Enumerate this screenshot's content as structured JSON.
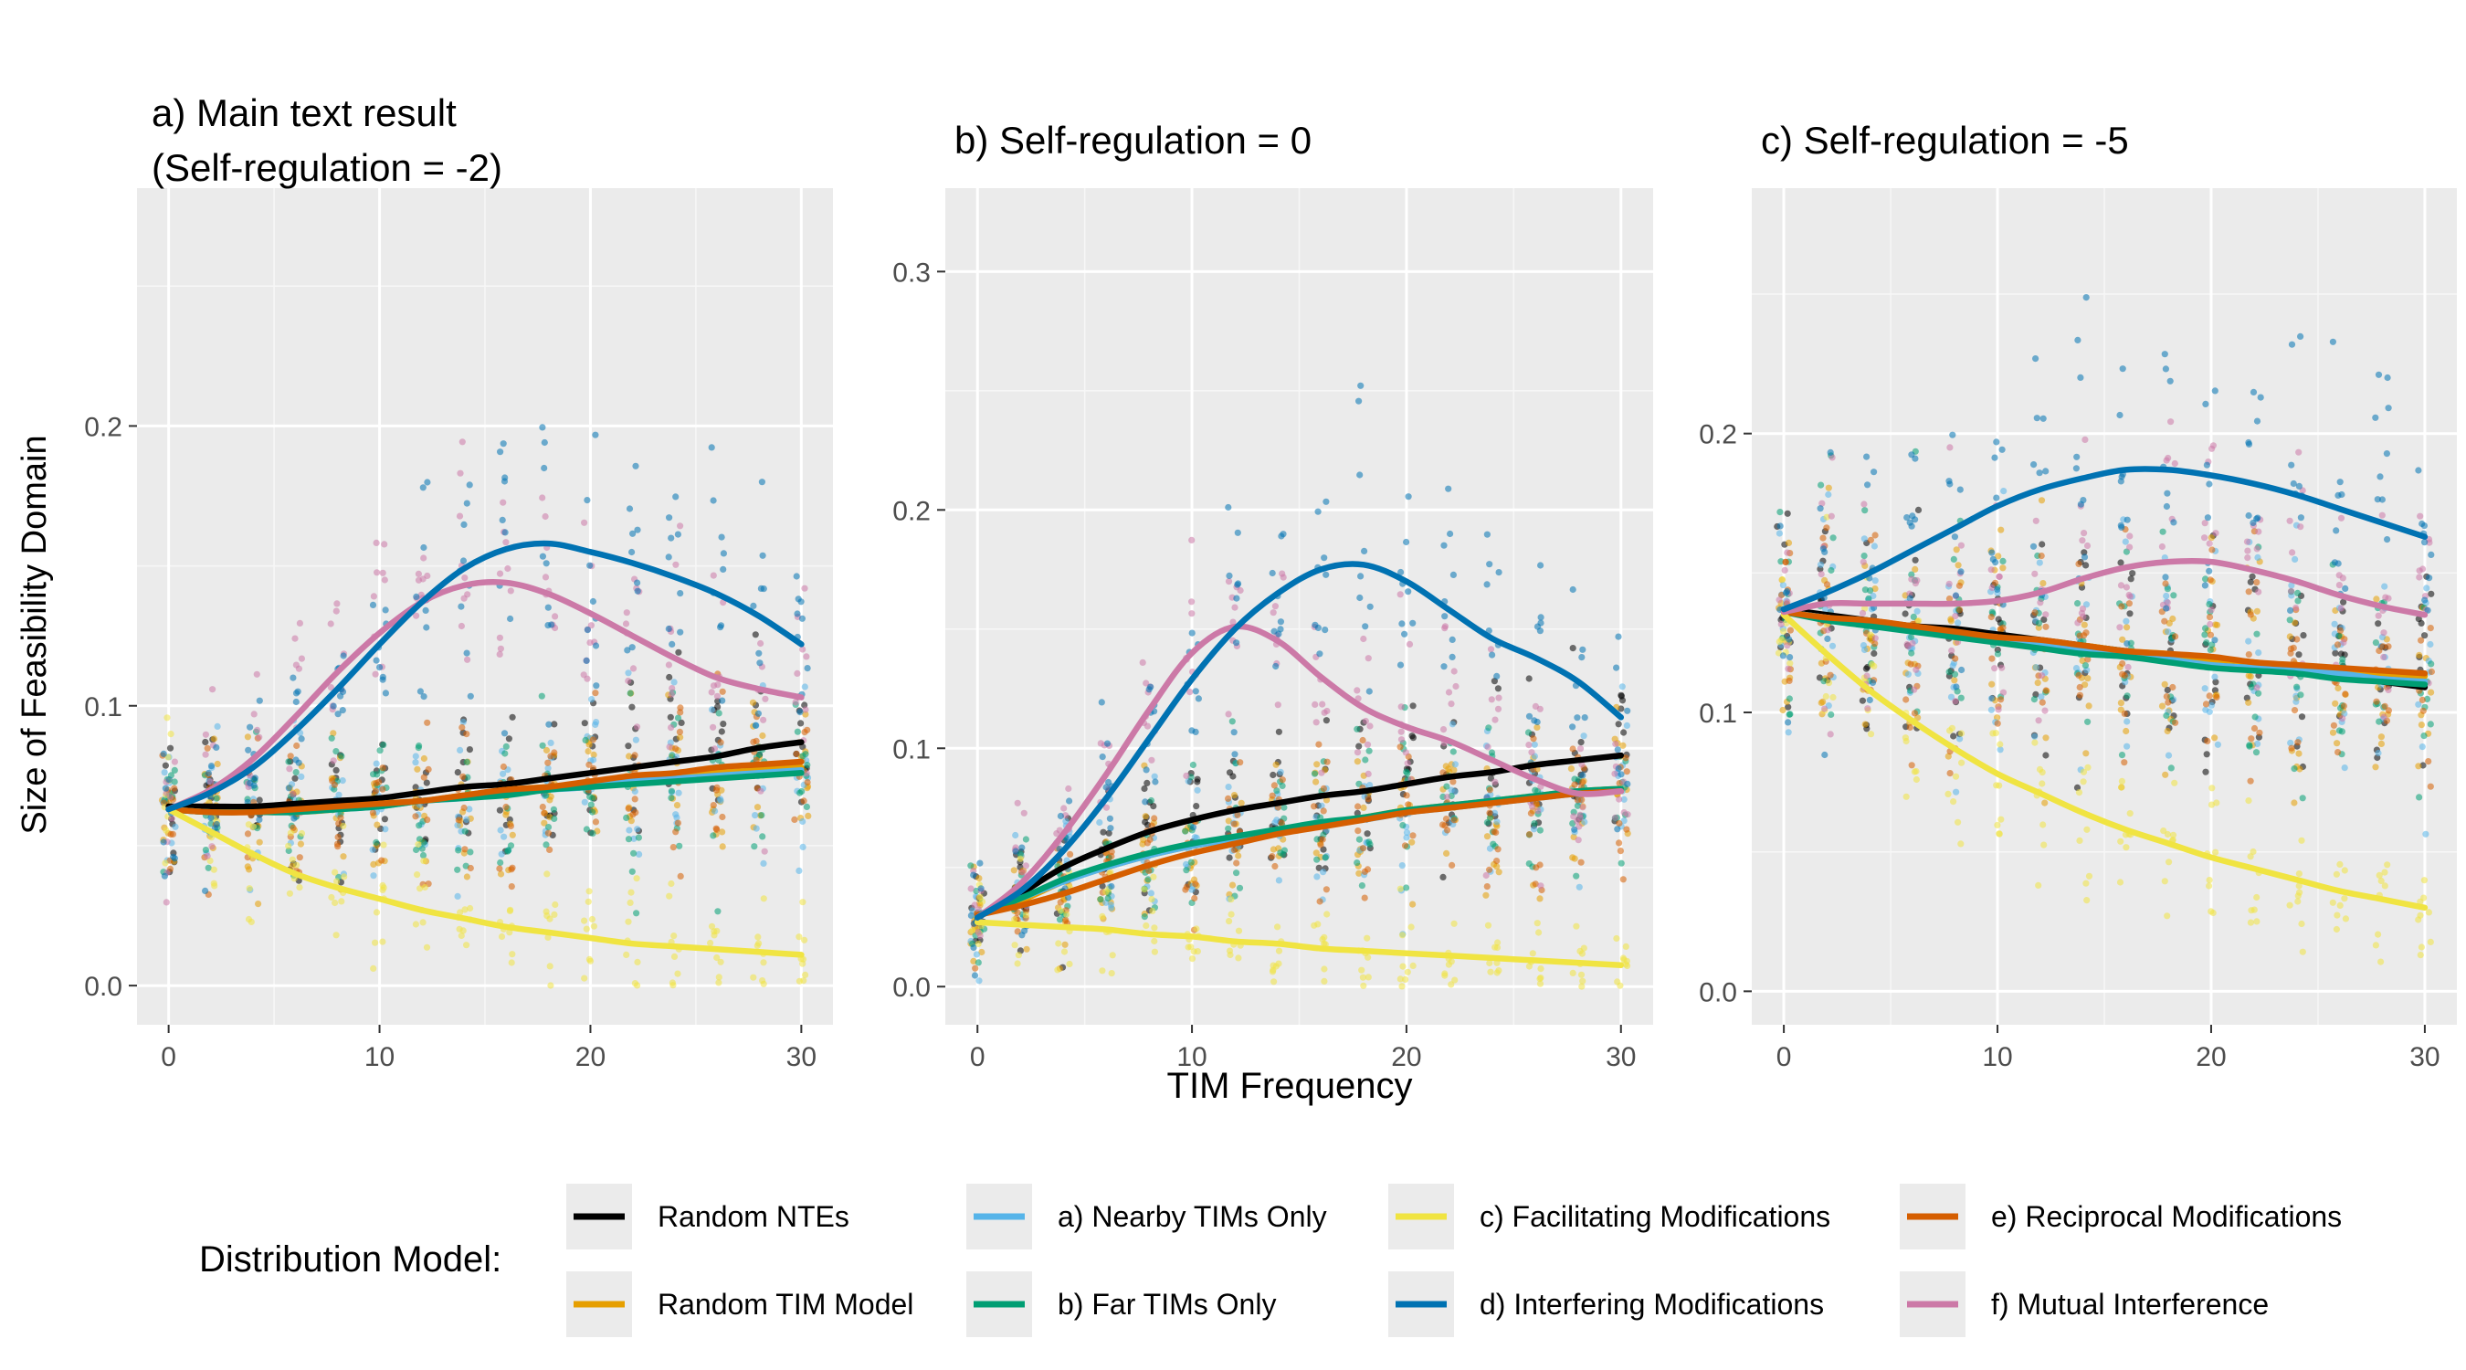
{
  "figure": {
    "ylabel": "Size of Feasibility Domain",
    "xlabel": "TIM Frequency",
    "legend_title": "Distribution Model:",
    "legend": [
      {
        "label": "Random NTEs",
        "color": "#000000"
      },
      {
        "label": "Random TIM Model",
        "color": "#E69F00"
      },
      {
        "label": "a) Nearby TIMs Only",
        "color": "#56B4E9"
      },
      {
        "label": "b) Far TIMs Only",
        "color": "#009E73"
      },
      {
        "label": "c) Facilitating Modifications",
        "color": "#F0E442"
      },
      {
        "label": "d) Interfering Modifications",
        "color": "#0072B2"
      },
      {
        "label": "e) Reciprocal Modifications",
        "color": "#D55E00"
      },
      {
        "label": "f) Mutual Interference",
        "color": "#CC79A7"
      }
    ]
  },
  "chart_data": [
    {
      "type": "scatter",
      "title": "a) Main text result",
      "subtitle": "(Self-regulation = -2)",
      "xlim": [
        -1.5,
        31.5
      ],
      "ylim": [
        -0.014,
        0.285
      ],
      "x_ticks": [
        0,
        10,
        20,
        30
      ],
      "y_ticks": [
        0.0,
        0.1,
        0.2
      ],
      "y_tick_labels": [
        "0.0",
        "0.1",
        "0.2"
      ],
      "x": [
        0,
        2,
        4,
        6,
        8,
        10,
        12,
        14,
        16,
        18,
        20,
        22,
        24,
        26,
        28,
        30
      ],
      "series": [
        {
          "name": "Random NTEs",
          "color": "#000000",
          "values": [
            0.064,
            0.064,
            0.064,
            0.065,
            0.066,
            0.067,
            0.069,
            0.071,
            0.072,
            0.074,
            0.076,
            0.078,
            0.08,
            0.082,
            0.085,
            0.087
          ]
        },
        {
          "name": "Random TIM Model",
          "color": "#E69F00",
          "values": [
            0.063,
            0.062,
            0.062,
            0.062,
            0.063,
            0.065,
            0.066,
            0.068,
            0.07,
            0.071,
            0.072,
            0.074,
            0.075,
            0.076,
            0.077,
            0.078
          ]
        },
        {
          "name": "a) Nearby TIMs Only",
          "color": "#56B4E9",
          "values": [
            0.063,
            0.062,
            0.062,
            0.062,
            0.063,
            0.064,
            0.066,
            0.067,
            0.069,
            0.07,
            0.071,
            0.073,
            0.074,
            0.075,
            0.076,
            0.077
          ]
        },
        {
          "name": "b) Far TIMs Only",
          "color": "#009E73",
          "values": [
            0.063,
            0.062,
            0.062,
            0.062,
            0.063,
            0.064,
            0.066,
            0.067,
            0.068,
            0.07,
            0.071,
            0.072,
            0.073,
            0.074,
            0.075,
            0.076
          ]
        },
        {
          "name": "c) Facilitating Modifications",
          "color": "#F0E442",
          "values": [
            0.063,
            0.055,
            0.047,
            0.04,
            0.035,
            0.031,
            0.027,
            0.024,
            0.021,
            0.019,
            0.017,
            0.015,
            0.014,
            0.013,
            0.012,
            0.011
          ]
        },
        {
          "name": "d) Interfering Modifications",
          "color": "#0072B2",
          "values": [
            0.063,
            0.069,
            0.078,
            0.091,
            0.106,
            0.122,
            0.137,
            0.149,
            0.156,
            0.158,
            0.155,
            0.151,
            0.146,
            0.14,
            0.132,
            0.122
          ]
        },
        {
          "name": "e) Reciprocal Modifications",
          "color": "#D55E00",
          "values": [
            0.063,
            0.062,
            0.062,
            0.063,
            0.064,
            0.065,
            0.066,
            0.068,
            0.07,
            0.071,
            0.073,
            0.075,
            0.076,
            0.078,
            0.079,
            0.08
          ]
        },
        {
          "name": "f) Mutual Interference",
          "color": "#CC79A7",
          "values": [
            0.063,
            0.07,
            0.081,
            0.096,
            0.112,
            0.126,
            0.137,
            0.143,
            0.144,
            0.14,
            0.133,
            0.125,
            0.117,
            0.11,
            0.106,
            0.103
          ]
        }
      ]
    },
    {
      "type": "scatter",
      "title": "b) Self-regulation = 0",
      "subtitle": "",
      "xlim": [
        -1.5,
        31.5
      ],
      "ylim": [
        -0.016,
        0.335
      ],
      "x_ticks": [
        0,
        10,
        20,
        30
      ],
      "y_ticks": [
        0.0,
        0.1,
        0.2,
        0.3
      ],
      "y_tick_labels": [
        "0.0",
        "0.1",
        "0.2",
        "0.3"
      ],
      "x": [
        0,
        2,
        4,
        6,
        8,
        10,
        12,
        14,
        16,
        18,
        20,
        22,
        24,
        26,
        28,
        30
      ],
      "series": [
        {
          "name": "Random NTEs",
          "color": "#000000",
          "values": [
            0.029,
            0.039,
            0.05,
            0.058,
            0.065,
            0.07,
            0.074,
            0.077,
            0.08,
            0.082,
            0.085,
            0.088,
            0.09,
            0.093,
            0.095,
            0.097
          ]
        },
        {
          "name": "Random TIM Model",
          "color": "#E69F00",
          "values": [
            0.03,
            0.036,
            0.044,
            0.05,
            0.055,
            0.059,
            0.062,
            0.065,
            0.068,
            0.071,
            0.074,
            0.076,
            0.078,
            0.08,
            0.082,
            0.083
          ]
        },
        {
          "name": "a) Nearby TIMs Only",
          "color": "#56B4E9",
          "values": [
            0.03,
            0.037,
            0.044,
            0.05,
            0.055,
            0.059,
            0.062,
            0.065,
            0.068,
            0.07,
            0.073,
            0.075,
            0.077,
            0.079,
            0.081,
            0.082
          ]
        },
        {
          "name": "b) Far TIMs Only",
          "color": "#009E73",
          "values": [
            0.03,
            0.037,
            0.045,
            0.051,
            0.056,
            0.06,
            0.063,
            0.066,
            0.069,
            0.071,
            0.074,
            0.076,
            0.078,
            0.08,
            0.082,
            0.083
          ]
        },
        {
          "name": "c) Facilitating Modifications",
          "color": "#F0E442",
          "values": [
            0.027,
            0.026,
            0.025,
            0.024,
            0.022,
            0.021,
            0.019,
            0.018,
            0.016,
            0.015,
            0.014,
            0.013,
            0.012,
            0.011,
            0.01,
            0.009
          ]
        },
        {
          "name": "d) Interfering Modifications",
          "color": "#0072B2",
          "values": [
            0.029,
            0.04,
            0.057,
            0.079,
            0.104,
            0.129,
            0.15,
            0.165,
            0.175,
            0.177,
            0.17,
            0.158,
            0.146,
            0.138,
            0.128,
            0.113
          ]
        },
        {
          "name": "e) Reciprocal Modifications",
          "color": "#D55E00",
          "values": [
            0.03,
            0.034,
            0.039,
            0.045,
            0.051,
            0.056,
            0.06,
            0.064,
            0.067,
            0.07,
            0.073,
            0.075,
            0.077,
            0.079,
            0.081,
            0.082
          ]
        },
        {
          "name": "f) Mutual Interference",
          "color": "#CC79A7",
          "values": [
            0.029,
            0.043,
            0.064,
            0.089,
            0.116,
            0.14,
            0.151,
            0.145,
            0.13,
            0.117,
            0.109,
            0.103,
            0.095,
            0.087,
            0.081,
            0.082
          ]
        }
      ]
    },
    {
      "type": "scatter",
      "title": "c) Self-regulation = -5",
      "subtitle": "",
      "xlim": [
        -1.5,
        31.5
      ],
      "ylim": [
        -0.012,
        0.288
      ],
      "x_ticks": [
        0,
        10,
        20,
        30
      ],
      "y_ticks": [
        0.0,
        0.1,
        0.2
      ],
      "y_tick_labels": [
        "0.0",
        "0.1",
        "0.2"
      ],
      "x": [
        0,
        2,
        4,
        6,
        8,
        10,
        12,
        14,
        16,
        18,
        20,
        22,
        24,
        26,
        28,
        30
      ],
      "series": [
        {
          "name": "Random NTEs",
          "color": "#000000",
          "values": [
            0.137,
            0.135,
            0.133,
            0.131,
            0.13,
            0.128,
            0.126,
            0.124,
            0.122,
            0.12,
            0.118,
            0.116,
            0.115,
            0.113,
            0.111,
            0.109
          ]
        },
        {
          "name": "Random TIM Model",
          "color": "#E69F00",
          "values": [
            0.136,
            0.134,
            0.132,
            0.13,
            0.128,
            0.127,
            0.125,
            0.124,
            0.122,
            0.121,
            0.119,
            0.118,
            0.116,
            0.115,
            0.114,
            0.113
          ]
        },
        {
          "name": "a) Nearby TIMs Only",
          "color": "#56B4E9",
          "values": [
            0.136,
            0.134,
            0.132,
            0.13,
            0.128,
            0.126,
            0.124,
            0.122,
            0.121,
            0.119,
            0.117,
            0.116,
            0.115,
            0.114,
            0.112,
            0.111
          ]
        },
        {
          "name": "b) Far TIMs Only",
          "color": "#009E73",
          "values": [
            0.136,
            0.133,
            0.131,
            0.129,
            0.127,
            0.125,
            0.123,
            0.121,
            0.12,
            0.118,
            0.116,
            0.115,
            0.114,
            0.112,
            0.111,
            0.11
          ]
        },
        {
          "name": "c) Facilitating Modifications",
          "color": "#F0E442",
          "values": [
            0.135,
            0.121,
            0.108,
            0.097,
            0.087,
            0.078,
            0.071,
            0.064,
            0.058,
            0.053,
            0.048,
            0.044,
            0.04,
            0.036,
            0.033,
            0.03
          ]
        },
        {
          "name": "d) Interfering Modifications",
          "color": "#0072B2",
          "values": [
            0.137,
            0.143,
            0.15,
            0.158,
            0.166,
            0.174,
            0.18,
            0.184,
            0.187,
            0.187,
            0.185,
            0.182,
            0.178,
            0.173,
            0.168,
            0.163
          ]
        },
        {
          "name": "e) Reciprocal Modifications",
          "color": "#D55E00",
          "values": [
            0.136,
            0.134,
            0.133,
            0.131,
            0.129,
            0.127,
            0.126,
            0.124,
            0.122,
            0.121,
            0.12,
            0.118,
            0.117,
            0.116,
            0.115,
            0.114
          ]
        },
        {
          "name": "f) Mutual Interference",
          "color": "#CC79A7",
          "values": [
            0.136,
            0.139,
            0.139,
            0.139,
            0.139,
            0.14,
            0.143,
            0.148,
            0.152,
            0.154,
            0.154,
            0.151,
            0.147,
            0.142,
            0.138,
            0.135
          ]
        }
      ]
    }
  ]
}
